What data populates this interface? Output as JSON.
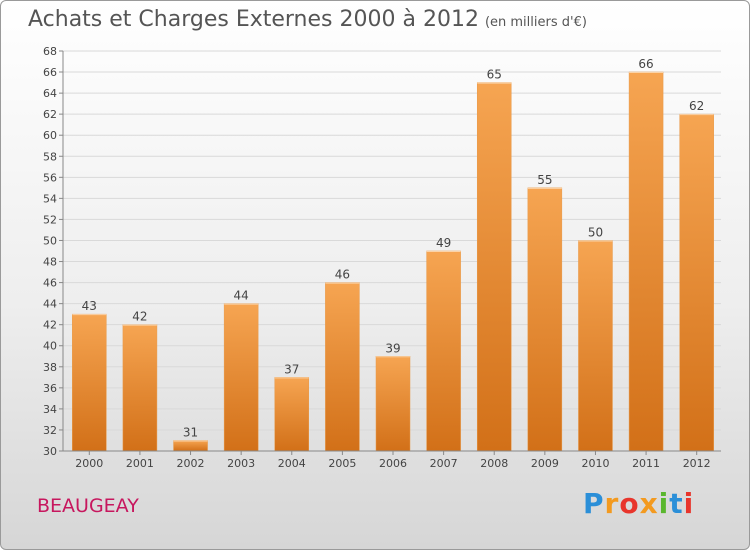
{
  "header": {
    "title": "Achats et Charges Externes 2000 à 2012",
    "unit": "(en milliers d'€)"
  },
  "footer": {
    "commune": "BEAUGEAY",
    "brand_letters": [
      {
        "ch": "P",
        "color": "#2b8fd8"
      },
      {
        "ch": "r",
        "color": "#f39a1f"
      },
      {
        "ch": "o",
        "color": "#e8352c"
      },
      {
        "ch": "x",
        "color": "#f39a1f"
      },
      {
        "ch": "i",
        "color": "#5ab72e"
      },
      {
        "ch": "t",
        "color": "#2b8fd8"
      },
      {
        "ch": "i",
        "color": "#e8352c"
      }
    ]
  },
  "chart_data": {
    "type": "bar",
    "categories": [
      "2000",
      "2001",
      "2002",
      "2003",
      "2004",
      "2005",
      "2006",
      "2007",
      "2008",
      "2009",
      "2010",
      "2011",
      "2012"
    ],
    "values": [
      43,
      42,
      31,
      44,
      37,
      46,
      39,
      49,
      65,
      55,
      50,
      66,
      62
    ],
    "ylim": [
      30,
      68
    ],
    "ytick_step": 2,
    "grid": true,
    "bar_color_top": "#f6a552",
    "bar_color_bottom": "#d27018"
  }
}
